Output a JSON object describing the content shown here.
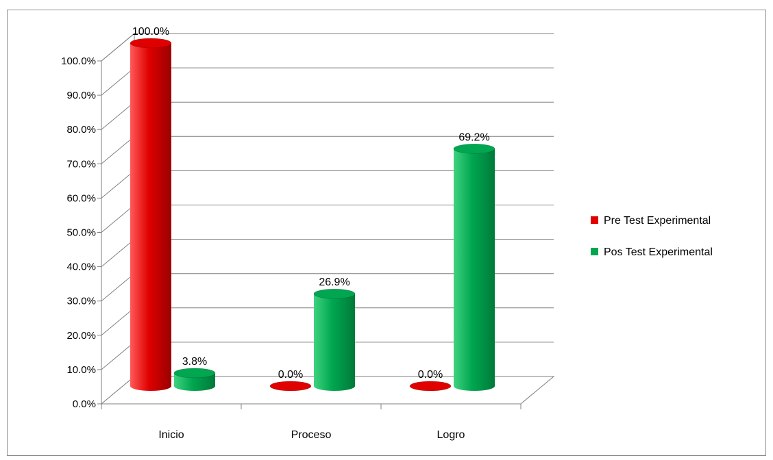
{
  "chart_data": {
    "type": "bar",
    "categories": [
      "Inicio",
      "Proceso",
      "Logro"
    ],
    "series": [
      {
        "name": "Pre Test Experimental",
        "color": "#e00000",
        "values": [
          100.0,
          0.0,
          0.0
        ],
        "labels": [
          "100.0%",
          "0.0%",
          "0.0%"
        ]
      },
      {
        "name": "Pos Test Experimental",
        "color": "#00a650",
        "values": [
          3.8,
          26.9,
          69.2
        ],
        "labels": [
          "3.8%",
          "26.9%",
          "69.2%"
        ]
      }
    ],
    "ylim": [
      0,
      100
    ],
    "yticks": [
      "0.0%",
      "10.0%",
      "20.0%",
      "30.0%",
      "40.0%",
      "50.0%",
      "60.0%",
      "70.0%",
      "80.0%",
      "90.0%",
      "100.0%"
    ],
    "grid": true,
    "legend": "right",
    "style": "3d-cylinder"
  }
}
